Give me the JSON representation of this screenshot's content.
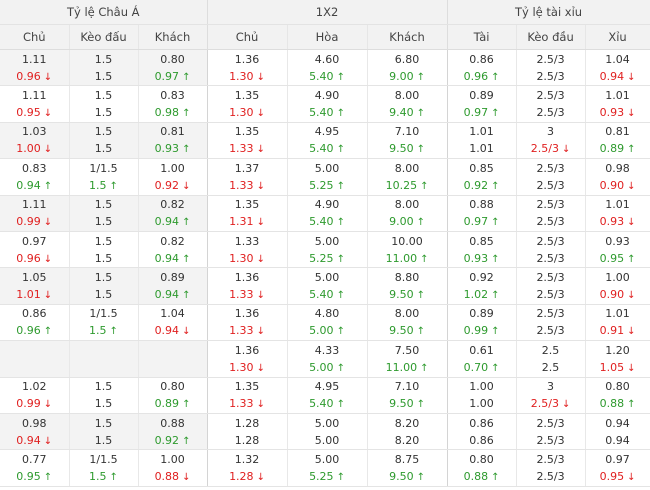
{
  "groups": [
    "Tỷ lệ Châu Á",
    "1X2",
    "Tỷ lệ tài xỉu"
  ],
  "columns": [
    "Chủ",
    "Kèo đấu",
    "Khách",
    "Chủ",
    "Hòa",
    "Khách",
    "Tài",
    "Kèo đầu",
    "Xỉu"
  ],
  "arrows": {
    "up": "↑",
    "down": "↓"
  },
  "colors": {
    "up": "#2e9a2e",
    "down": "#e02020",
    "header_bg": "#f2f2f2",
    "shaded_bg": "#f3f3f3"
  },
  "rows": [
    {
      "shaded": true,
      "cells": [
        {
          "o": "1.11",
          "c": "0.96",
          "d": "down"
        },
        {
          "o": "1.5",
          "c": "1.5",
          "d": ""
        },
        {
          "o": "0.80",
          "c": "0.97",
          "d": "up"
        },
        {
          "o": "1.36",
          "c": "1.30",
          "d": "down"
        },
        {
          "o": "4.60",
          "c": "5.40",
          "d": "up"
        },
        {
          "o": "6.80",
          "c": "9.00",
          "d": "up"
        },
        {
          "o": "0.86",
          "c": "0.96",
          "d": "up"
        },
        {
          "o": "2.5/3",
          "c": "2.5/3",
          "d": ""
        },
        {
          "o": "1.04",
          "c": "0.94",
          "d": "down"
        }
      ]
    },
    {
      "shaded": false,
      "cells": [
        {
          "o": "1.11",
          "c": "0.95",
          "d": "down"
        },
        {
          "o": "1.5",
          "c": "1.5",
          "d": ""
        },
        {
          "o": "0.83",
          "c": "0.98",
          "d": "up"
        },
        {
          "o": "1.35",
          "c": "1.30",
          "d": "down"
        },
        {
          "o": "4.90",
          "c": "5.40",
          "d": "up"
        },
        {
          "o": "8.00",
          "c": "9.40",
          "d": "up"
        },
        {
          "o": "0.89",
          "c": "0.97",
          "d": "up"
        },
        {
          "o": "2.5/3",
          "c": "2.5/3",
          "d": ""
        },
        {
          "o": "1.01",
          "c": "0.93",
          "d": "down"
        }
      ]
    },
    {
      "shaded": true,
      "cells": [
        {
          "o": "1.03",
          "c": "1.00",
          "d": "down"
        },
        {
          "o": "1.5",
          "c": "1.5",
          "d": ""
        },
        {
          "o": "0.81",
          "c": "0.93",
          "d": "up"
        },
        {
          "o": "1.35",
          "c": "1.33",
          "d": "down"
        },
        {
          "o": "4.95",
          "c": "5.40",
          "d": "up"
        },
        {
          "o": "7.10",
          "c": "9.50",
          "d": "up"
        },
        {
          "o": "1.01",
          "c": "1.01",
          "d": ""
        },
        {
          "o": "3",
          "c": "2.5/3",
          "d": "down"
        },
        {
          "o": "0.81",
          "c": "0.89",
          "d": "up"
        }
      ]
    },
    {
      "shaded": false,
      "cells": [
        {
          "o": "0.83",
          "c": "0.94",
          "d": "up"
        },
        {
          "o": "1/1.5",
          "c": "1.5",
          "d": "up"
        },
        {
          "o": "1.00",
          "c": "0.92",
          "d": "down"
        },
        {
          "o": "1.37",
          "c": "1.33",
          "d": "down"
        },
        {
          "o": "5.00",
          "c": "5.25",
          "d": "up"
        },
        {
          "o": "8.00",
          "c": "10.25",
          "d": "up"
        },
        {
          "o": "0.85",
          "c": "0.92",
          "d": "up"
        },
        {
          "o": "2.5/3",
          "c": "2.5/3",
          "d": ""
        },
        {
          "o": "0.98",
          "c": "0.90",
          "d": "down"
        }
      ]
    },
    {
      "shaded": true,
      "cells": [
        {
          "o": "1.11",
          "c": "0.99",
          "d": "down"
        },
        {
          "o": "1.5",
          "c": "1.5",
          "d": ""
        },
        {
          "o": "0.82",
          "c": "0.94",
          "d": "up"
        },
        {
          "o": "1.35",
          "c": "1.31",
          "d": "down"
        },
        {
          "o": "4.90",
          "c": "5.40",
          "d": "up"
        },
        {
          "o": "8.00",
          "c": "9.00",
          "d": "up"
        },
        {
          "o": "0.88",
          "c": "0.97",
          "d": "up"
        },
        {
          "o": "2.5/3",
          "c": "2.5/3",
          "d": ""
        },
        {
          "o": "1.01",
          "c": "0.93",
          "d": "down"
        }
      ]
    },
    {
      "shaded": false,
      "cells": [
        {
          "o": "0.97",
          "c": "0.96",
          "d": "down"
        },
        {
          "o": "1.5",
          "c": "1.5",
          "d": ""
        },
        {
          "o": "0.82",
          "c": "0.94",
          "d": "up"
        },
        {
          "o": "1.33",
          "c": "1.30",
          "d": "down"
        },
        {
          "o": "5.00",
          "c": "5.25",
          "d": "up"
        },
        {
          "o": "10.00",
          "c": "11.00",
          "d": "up"
        },
        {
          "o": "0.85",
          "c": "0.93",
          "d": "up"
        },
        {
          "o": "2.5/3",
          "c": "2.5/3",
          "d": ""
        },
        {
          "o": "0.93",
          "c": "0.95",
          "d": "up"
        }
      ]
    },
    {
      "shaded": true,
      "cells": [
        {
          "o": "1.05",
          "c": "1.01",
          "d": "down"
        },
        {
          "o": "1.5",
          "c": "1.5",
          "d": ""
        },
        {
          "o": "0.89",
          "c": "0.94",
          "d": "up"
        },
        {
          "o": "1.36",
          "c": "1.33",
          "d": "down"
        },
        {
          "o": "5.00",
          "c": "5.40",
          "d": "up"
        },
        {
          "o": "8.80",
          "c": "9.50",
          "d": "up"
        },
        {
          "o": "0.92",
          "c": "1.02",
          "d": "up"
        },
        {
          "o": "2.5/3",
          "c": "2.5/3",
          "d": ""
        },
        {
          "o": "1.00",
          "c": "0.90",
          "d": "down"
        }
      ]
    },
    {
      "shaded": false,
      "cells": [
        {
          "o": "0.86",
          "c": "0.96",
          "d": "up"
        },
        {
          "o": "1/1.5",
          "c": "1.5",
          "d": "up"
        },
        {
          "o": "1.04",
          "c": "0.94",
          "d": "down"
        },
        {
          "o": "1.36",
          "c": "1.33",
          "d": "down"
        },
        {
          "o": "4.80",
          "c": "5.00",
          "d": "up"
        },
        {
          "o": "8.00",
          "c": "9.50",
          "d": "up"
        },
        {
          "o": "0.89",
          "c": "0.99",
          "d": "up"
        },
        {
          "o": "2.5/3",
          "c": "2.5/3",
          "d": ""
        },
        {
          "o": "1.01",
          "c": "0.91",
          "d": "down"
        }
      ]
    },
    {
      "shaded": true,
      "cells": [
        {
          "o": "",
          "c": "",
          "d": ""
        },
        {
          "o": "",
          "c": "",
          "d": ""
        },
        {
          "o": "",
          "c": "",
          "d": ""
        },
        {
          "o": "1.36",
          "c": "1.30",
          "d": "down"
        },
        {
          "o": "4.33",
          "c": "5.00",
          "d": "up"
        },
        {
          "o": "7.50",
          "c": "11.00",
          "d": "up"
        },
        {
          "o": "0.61",
          "c": "0.70",
          "d": "up"
        },
        {
          "o": "2.5",
          "c": "2.5",
          "d": ""
        },
        {
          "o": "1.20",
          "c": "1.05",
          "d": "down"
        }
      ]
    },
    {
      "shaded": false,
      "cells": [
        {
          "o": "1.02",
          "c": "0.99",
          "d": "down"
        },
        {
          "o": "1.5",
          "c": "1.5",
          "d": ""
        },
        {
          "o": "0.80",
          "c": "0.89",
          "d": "up"
        },
        {
          "o": "1.35",
          "c": "1.33",
          "d": "down"
        },
        {
          "o": "4.95",
          "c": "5.40",
          "d": "up"
        },
        {
          "o": "7.10",
          "c": "9.50",
          "d": "up"
        },
        {
          "o": "1.00",
          "c": "1.00",
          "d": ""
        },
        {
          "o": "3",
          "c": "2.5/3",
          "d": "down"
        },
        {
          "o": "0.80",
          "c": "0.88",
          "d": "up"
        }
      ]
    },
    {
      "shaded": true,
      "cells": [
        {
          "o": "0.98",
          "c": "0.94",
          "d": "down"
        },
        {
          "o": "1.5",
          "c": "1.5",
          "d": ""
        },
        {
          "o": "0.88",
          "c": "0.92",
          "d": "up"
        },
        {
          "o": "1.28",
          "c": "1.28",
          "d": ""
        },
        {
          "o": "5.00",
          "c": "5.00",
          "d": ""
        },
        {
          "o": "8.20",
          "c": "8.20",
          "d": ""
        },
        {
          "o": "0.86",
          "c": "0.86",
          "d": ""
        },
        {
          "o": "2.5/3",
          "c": "2.5/3",
          "d": ""
        },
        {
          "o": "0.94",
          "c": "0.94",
          "d": ""
        }
      ]
    },
    {
      "shaded": false,
      "cells": [
        {
          "o": "0.77",
          "c": "0.95",
          "d": "up"
        },
        {
          "o": "1/1.5",
          "c": "1.5",
          "d": "up"
        },
        {
          "o": "1.00",
          "c": "0.88",
          "d": "down"
        },
        {
          "o": "1.32",
          "c": "1.28",
          "d": "down"
        },
        {
          "o": "5.00",
          "c": "5.25",
          "d": "up"
        },
        {
          "o": "8.75",
          "c": "9.50",
          "d": "up"
        },
        {
          "o": "0.80",
          "c": "0.88",
          "d": "up"
        },
        {
          "o": "2.5/3",
          "c": "2.5/3",
          "d": ""
        },
        {
          "o": "0.97",
          "c": "0.95",
          "d": "down"
        }
      ]
    }
  ]
}
